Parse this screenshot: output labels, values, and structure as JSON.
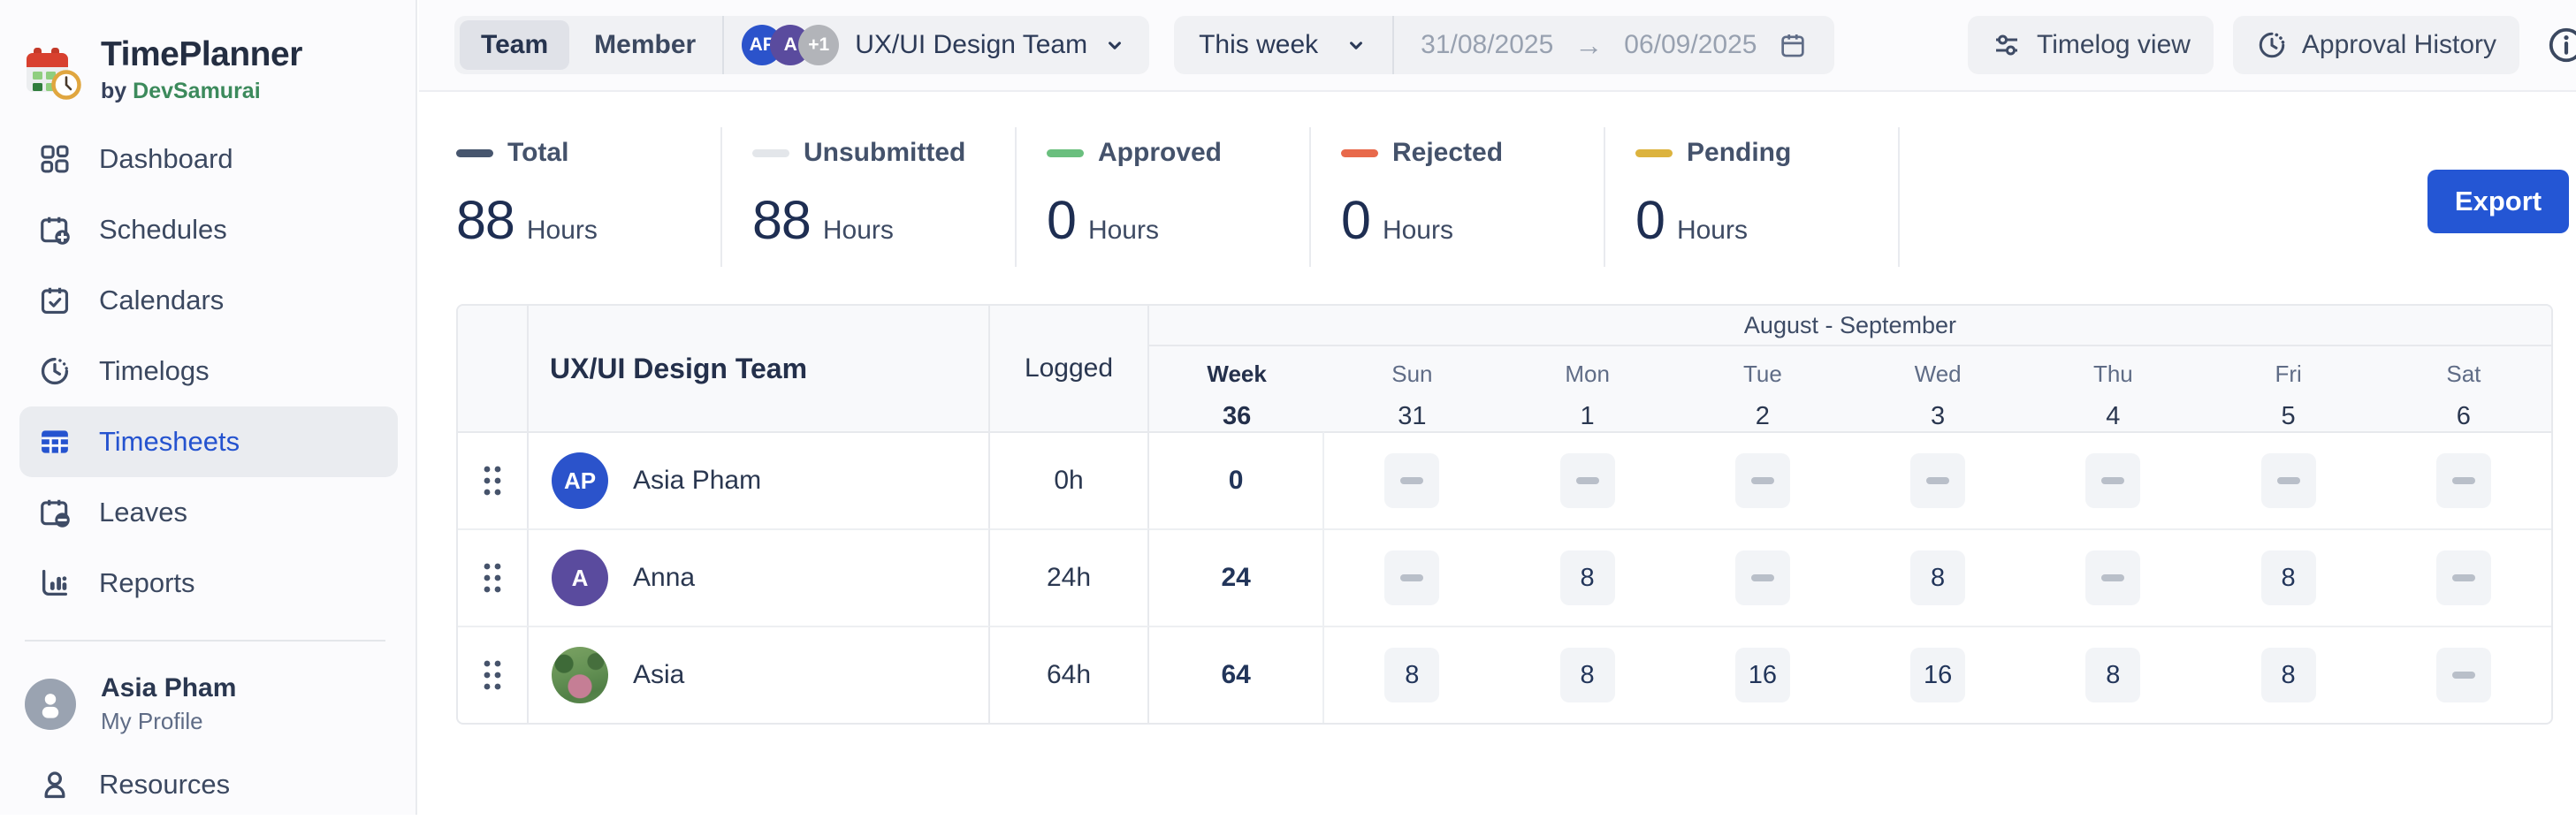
{
  "app": {
    "title": "TimePlanner",
    "byline": {
      "prefix": "by",
      "brand": "DevSamurai"
    }
  },
  "colors": {
    "accent_blue": "#2553cf",
    "export_button": "#2456d4",
    "active_item_bg": "#eaecf0"
  },
  "sidebar": {
    "items": [
      {
        "icon": "dashboard-icon",
        "label": "Dashboard",
        "active": false
      },
      {
        "icon": "schedules-icon",
        "label": "Schedules",
        "active": false
      },
      {
        "icon": "calendars-icon",
        "label": "Calendars",
        "active": false
      },
      {
        "icon": "timelogs-icon",
        "label": "Timelogs",
        "active": false
      },
      {
        "icon": "timesheets-icon",
        "label": "Timesheets",
        "active": true
      },
      {
        "icon": "leaves-icon",
        "label": "Leaves",
        "active": false
      },
      {
        "icon": "reports-icon",
        "label": "Reports",
        "active": false
      }
    ],
    "profile": {
      "name": "Asia Pham",
      "subtitle": "My Profile"
    },
    "resources": {
      "icon": "person-icon",
      "label": "Resources"
    }
  },
  "toolbar": {
    "view_toggle": {
      "options": [
        "Team",
        "Member"
      ],
      "selected": "Team"
    },
    "team": {
      "name": "UX/UI Design Team",
      "avatars": [
        {
          "text": "AP",
          "color": "#2b53cb"
        },
        {
          "text": "A",
          "color": "#5a4b9e"
        },
        {
          "text": "+1",
          "color": "#b2b4b9"
        }
      ]
    },
    "period": {
      "preset": "This week",
      "from": "31/08/2025",
      "to": "06/09/2025"
    },
    "actions": {
      "timelog_view": "Timelog view",
      "approval_history": "Approval History"
    }
  },
  "stats": [
    {
      "label": "Total",
      "value": "88",
      "unit": "Hours",
      "color": "#47566e"
    },
    {
      "label": "Unsubmitted",
      "value": "88",
      "unit": "Hours",
      "color": "#e3e6ea"
    },
    {
      "label": "Approved",
      "value": "0",
      "unit": "Hours",
      "color": "#6abf7e"
    },
    {
      "label": "Rejected",
      "value": "0",
      "unit": "Hours",
      "color": "#e8694b"
    },
    {
      "label": "Pending",
      "value": "0",
      "unit": "Hours",
      "color": "#dcb33e"
    }
  ],
  "export_label": "Export",
  "timesheet": {
    "team_column_header": "UX/UI Design Team",
    "logged_column_header": "Logged",
    "group_header": "August - September",
    "week_column": {
      "label": "Week",
      "number": "36"
    },
    "day_columns": [
      {
        "day": "Sun",
        "date": "31"
      },
      {
        "day": "Mon",
        "date": "1"
      },
      {
        "day": "Tue",
        "date": "2"
      },
      {
        "day": "Wed",
        "date": "3"
      },
      {
        "day": "Thu",
        "date": "4"
      },
      {
        "day": "Fri",
        "date": "5"
      },
      {
        "day": "Sat",
        "date": "6"
      }
    ],
    "rows": [
      {
        "name": "Asia Pham",
        "avatar": {
          "type": "initials",
          "text": "AP",
          "color": "#2b53cb"
        },
        "logged": "0h",
        "week_total": "0",
        "hours": [
          null,
          null,
          null,
          null,
          null,
          null,
          null
        ]
      },
      {
        "name": "Anna",
        "avatar": {
          "type": "initials",
          "text": "A",
          "color": "#5a4b9e"
        },
        "logged": "24h",
        "week_total": "24",
        "hours": [
          null,
          "8",
          null,
          "8",
          null,
          "8",
          null
        ]
      },
      {
        "name": "Asia",
        "avatar": {
          "type": "photo"
        },
        "logged": "64h",
        "week_total": "64",
        "hours": [
          "8",
          "8",
          "16",
          "16",
          "8",
          "8",
          null
        ]
      }
    ]
  }
}
